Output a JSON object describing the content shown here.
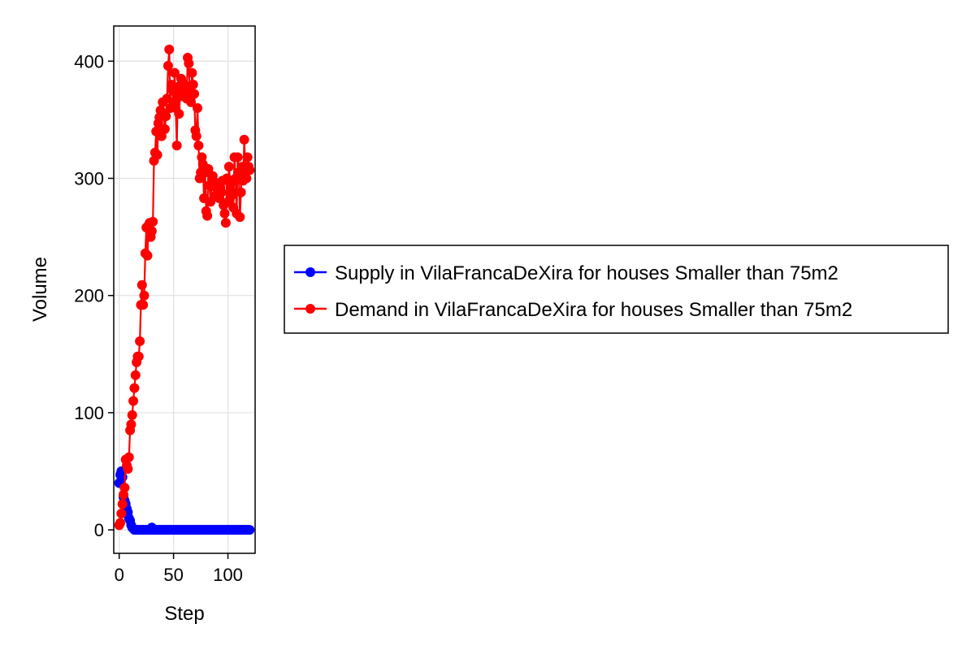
{
  "chart_data": {
    "type": "line",
    "title": "",
    "xlabel": "Step",
    "ylabel": "Volume",
    "xlim": [
      -5,
      125
    ],
    "ylim": [
      -20,
      430
    ],
    "xticks": [
      0,
      50,
      100
    ],
    "yticks": [
      0,
      100,
      200,
      300,
      400
    ],
    "xtick_labels": [
      "0",
      "50",
      "100"
    ],
    "ytick_labels": [
      "0",
      "100",
      "200",
      "300",
      "400"
    ],
    "grid": true,
    "legend_position": "right",
    "series": [
      {
        "name": "Supply in VilaFrancaDeXira for houses Smaller than 75m2",
        "color": "#0000ff",
        "marker": "circle",
        "x": [
          0,
          1,
          2,
          3,
          4,
          5,
          6,
          7,
          8,
          9,
          10,
          11,
          12,
          13,
          14,
          15,
          16,
          17,
          18,
          19,
          20,
          21,
          22,
          23,
          24,
          25,
          26,
          27,
          28,
          29,
          30,
          31,
          32,
          33,
          34,
          35,
          36,
          37,
          38,
          39,
          40,
          41,
          42,
          43,
          44,
          45,
          46,
          47,
          48,
          49,
          50,
          51,
          52,
          53,
          54,
          55,
          56,
          57,
          58,
          59,
          60,
          61,
          62,
          63,
          64,
          65,
          66,
          67,
          68,
          69,
          70,
          71,
          72,
          73,
          74,
          75,
          76,
          77,
          78,
          79,
          80,
          81,
          82,
          83,
          84,
          85,
          86,
          87,
          88,
          89,
          90,
          91,
          92,
          93,
          94,
          95,
          96,
          97,
          98,
          99,
          100,
          101,
          102,
          103,
          104,
          105,
          106,
          107,
          108,
          109,
          110,
          111,
          112,
          113,
          114,
          115,
          116,
          117,
          118,
          119,
          120
        ],
        "y": [
          40,
          47,
          50,
          45,
          28,
          25,
          22,
          18,
          15,
          10,
          8,
          4,
          2,
          1,
          0,
          0,
          0,
          0,
          0,
          0,
          0,
          0,
          0,
          0,
          0,
          0,
          0,
          0,
          0,
          0,
          2,
          0,
          0,
          0,
          0,
          0,
          0,
          0,
          0,
          0,
          0,
          0,
          0,
          0,
          0,
          0,
          0,
          0,
          0,
          0,
          0,
          0,
          0,
          0,
          0,
          0,
          0,
          0,
          0,
          0,
          0,
          0,
          0,
          0,
          0,
          0,
          0,
          0,
          0,
          0,
          0,
          0,
          0,
          0,
          0,
          0,
          0,
          0,
          0,
          0,
          0,
          0,
          0,
          0,
          0,
          0,
          0,
          0,
          0,
          0,
          0,
          0,
          0,
          0,
          0,
          0,
          0,
          0,
          0,
          0,
          0,
          0,
          0,
          0,
          0,
          0,
          0,
          0,
          0,
          0,
          0,
          0,
          0,
          0,
          0,
          0,
          0,
          0,
          0,
          0,
          0
        ]
      },
      {
        "name": "Demand in VilaFrancaDeXira for houses Smaller than 75m2",
        "color": "#ff0000",
        "marker": "circle",
        "x": [
          0,
          1,
          2,
          3,
          4,
          5,
          6,
          7,
          8,
          9,
          10,
          11,
          12,
          13,
          14,
          15,
          16,
          17,
          18,
          19,
          20,
          21,
          22,
          23,
          24,
          25,
          26,
          27,
          28,
          29,
          30,
          31,
          32,
          33,
          34,
          35,
          36,
          37,
          38,
          39,
          40,
          41,
          42,
          43,
          44,
          45,
          46,
          47,
          48,
          49,
          50,
          51,
          52,
          53,
          54,
          55,
          56,
          57,
          58,
          59,
          60,
          61,
          62,
          63,
          64,
          65,
          66,
          67,
          68,
          69,
          70,
          71,
          72,
          73,
          74,
          75,
          76,
          77,
          78,
          79,
          80,
          81,
          82,
          83,
          84,
          85,
          86,
          87,
          88,
          89,
          90,
          91,
          92,
          93,
          94,
          95,
          96,
          97,
          98,
          99,
          100,
          101,
          102,
          103,
          104,
          105,
          106,
          107,
          108,
          109,
          110,
          111,
          112,
          113,
          114,
          115,
          116,
          117,
          118,
          119,
          120
        ],
        "y": [
          4,
          6,
          14,
          22,
          30,
          36,
          60,
          55,
          52,
          62,
          85,
          90,
          98,
          110,
          121,
          132,
          143,
          148,
          148,
          161,
          192,
          209,
          192,
          200,
          236,
          258,
          234,
          260,
          262,
          250,
          255,
          263,
          315,
          322,
          340,
          320,
          347,
          352,
          358,
          336,
          365,
          355,
          342,
          353,
          368,
          396,
          410,
          360,
          380,
          375,
          365,
          390,
          360,
          328,
          378,
          355,
          370,
          385,
          382,
          372,
          380,
          375,
          368,
          403,
          398,
          372,
          365,
          390,
          380,
          372,
          341,
          336,
          360,
          328,
          300,
          305,
          318,
          312,
          283,
          305,
          272,
          268,
          308,
          294,
          280,
          296,
          302,
          295,
          285,
          292,
          296,
          286,
          283,
          292,
          288,
          298,
          277,
          270,
          262,
          300,
          280,
          310,
          295,
          285,
          288,
          275,
          318,
          300,
          270,
          318,
          305,
          267,
          288,
          310,
          298,
          333,
          307,
          300,
          318,
          310,
          307
        ]
      }
    ]
  }
}
